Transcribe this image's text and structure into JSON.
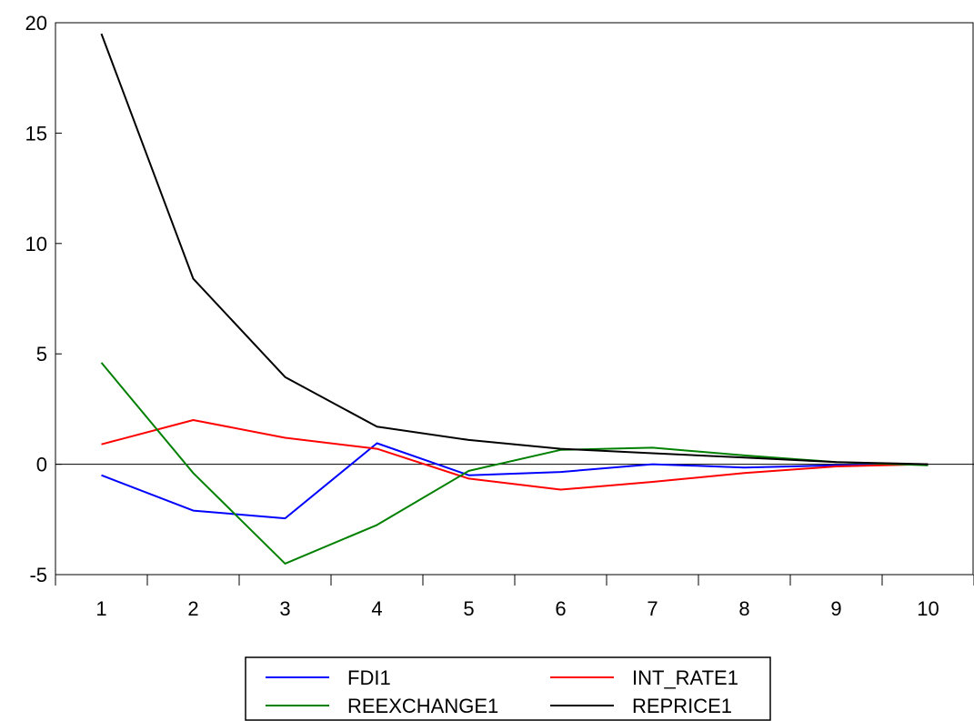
{
  "chart_data": {
    "type": "line",
    "title": "",
    "xlabel": "",
    "ylabel": "",
    "categories": [
      "1",
      "2",
      "3",
      "4",
      "5",
      "6",
      "7",
      "8",
      "9",
      "10"
    ],
    "ylim": [
      -5,
      20
    ],
    "yticks": [
      -5,
      0,
      5,
      10,
      15,
      20
    ],
    "ytick_labels": [
      "-5",
      "0",
      "5",
      "10",
      "15",
      "20"
    ],
    "zero_line": true,
    "grid": false,
    "legend_position": "bottom-center",
    "series": [
      {
        "name": "FDI1",
        "color": "#0000ff",
        "values": [
          -0.5,
          -2.1,
          -2.45,
          0.95,
          -0.5,
          -0.35,
          0.0,
          -0.15,
          -0.05,
          0.0
        ]
      },
      {
        "name": "INT_RATE1",
        "color": "#ff0000",
        "values": [
          0.9,
          2.0,
          1.2,
          0.7,
          -0.65,
          -1.15,
          -0.8,
          -0.4,
          -0.1,
          0.0
        ]
      },
      {
        "name": "REEXCHANGE1",
        "color": "#008000",
        "values": [
          4.6,
          -0.4,
          -4.5,
          -2.75,
          -0.3,
          0.65,
          0.75,
          0.4,
          0.1,
          -0.05
        ]
      },
      {
        "name": "REPRICE1",
        "color": "#000000",
        "values": [
          19.5,
          8.4,
          3.95,
          1.7,
          1.1,
          0.7,
          0.5,
          0.3,
          0.1,
          0.0
        ]
      }
    ]
  }
}
